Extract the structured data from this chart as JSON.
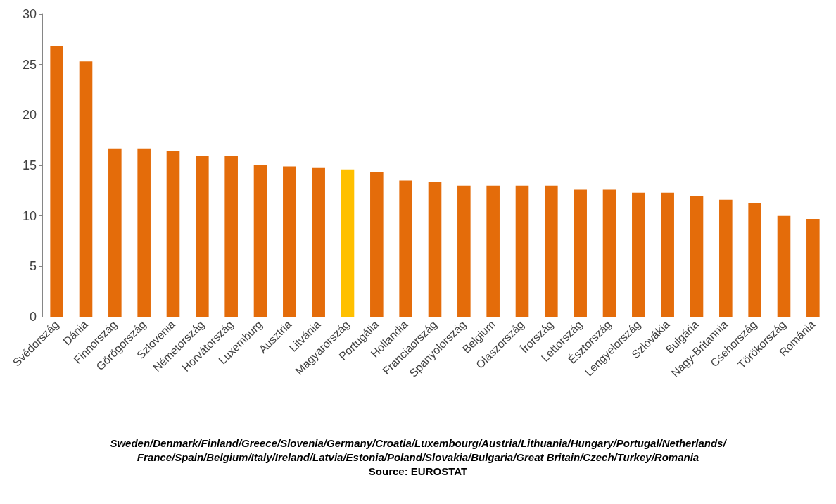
{
  "chart_data": {
    "type": "bar",
    "categories": [
      "Svédország",
      "Dánia",
      "Finnország",
      "Görögország",
      "Szlovénia",
      "Németország",
      "Horvátország",
      "Luxemburg",
      "Ausztria",
      "Litvánia",
      "Magyarország",
      "Portugália",
      "Hollandia",
      "Franciaország",
      "Spanyolország",
      "Belgium",
      "Olaszország",
      "Írország",
      "Lettország",
      "Észtország",
      "Lengyelország",
      "Szlovákia",
      "Bulgária",
      "Nagy-Britannia",
      "Csehország",
      "Törökország",
      "Románia"
    ],
    "values": [
      26.8,
      25.3,
      16.7,
      16.7,
      16.4,
      15.9,
      15.9,
      15.0,
      14.9,
      14.8,
      14.6,
      14.3,
      13.5,
      13.4,
      13.0,
      13.0,
      13.0,
      13.0,
      12.6,
      12.6,
      12.3,
      12.3,
      12.0,
      11.6,
      11.3,
      10.0,
      9.7
    ],
    "colors": [
      "#e46c0a",
      "#e46c0a",
      "#e46c0a",
      "#e46c0a",
      "#e46c0a",
      "#e46c0a",
      "#e46c0a",
      "#e46c0a",
      "#e46c0a",
      "#e46c0a",
      "#ffc000",
      "#e46c0a",
      "#e46c0a",
      "#e46c0a",
      "#e46c0a",
      "#e46c0a",
      "#e46c0a",
      "#e46c0a",
      "#e46c0a",
      "#e46c0a",
      "#e46c0a",
      "#e46c0a",
      "#e46c0a",
      "#e46c0a",
      "#e46c0a",
      "#e46c0a",
      "#e46c0a"
    ],
    "ylim": [
      0,
      30
    ],
    "yticks": [
      0,
      5,
      10,
      15,
      20,
      25,
      30
    ],
    "grid": false,
    "annotations": [
      "Sweden/Denmark/Finland/Greece/Slovenia/Germany/Croatia/Luxembourg/Austria/Lithuania/Hungary/Portugal/Netherlands/ France/Spain/Belgium/Italy/Ireland/Latvia/Estonia/Poland/Slovakia/Bulgaria/Great Britain/Czech/Turkey/Romania",
      "Source: EUROSTAT"
    ]
  }
}
